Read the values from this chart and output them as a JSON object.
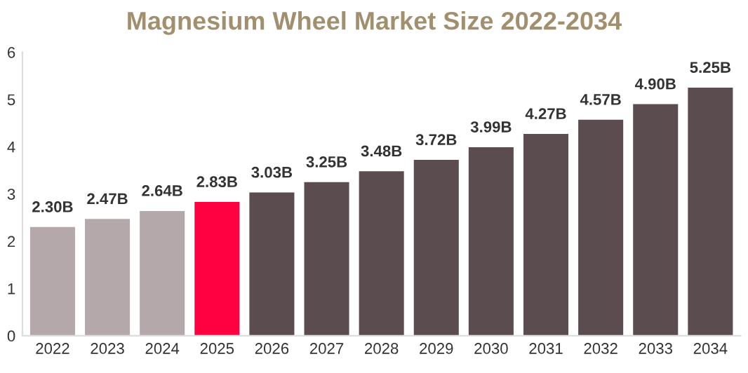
{
  "chart_data": {
    "type": "bar",
    "title": "Magnesium Wheel Market Size 2022-2034",
    "categories": [
      "2022",
      "2023",
      "2024",
      "2025",
      "2026",
      "2027",
      "2028",
      "2029",
      "2030",
      "2031",
      "2032",
      "2033",
      "2034"
    ],
    "values": [
      2.3,
      2.47,
      2.64,
      2.83,
      3.03,
      3.25,
      3.48,
      3.72,
      3.99,
      4.27,
      4.57,
      4.9,
      5.25
    ],
    "colors": [
      "#b5a8aa",
      "#b5a8aa",
      "#b5a8aa",
      "#ff0040",
      "#5b4d4f",
      "#5b4d4f",
      "#5b4d4f",
      "#5b4d4f",
      "#5b4d4f",
      "#5b4d4f",
      "#5b4d4f",
      "#5b4d4f",
      "#5b4d4f"
    ],
    "value_labels": [
      "2.30B",
      "2.47B",
      "2.64B",
      "2.83B",
      "3.03B",
      "3.25B",
      "3.48B",
      "3.72B",
      "3.99B",
      "4.27B",
      "4.57B",
      "4.90B",
      "5.25B"
    ],
    "ylim": [
      0,
      6
    ],
    "yticks": [
      0,
      1,
      2,
      3,
      4,
      5,
      6
    ],
    "grid": false,
    "legend": false
  }
}
